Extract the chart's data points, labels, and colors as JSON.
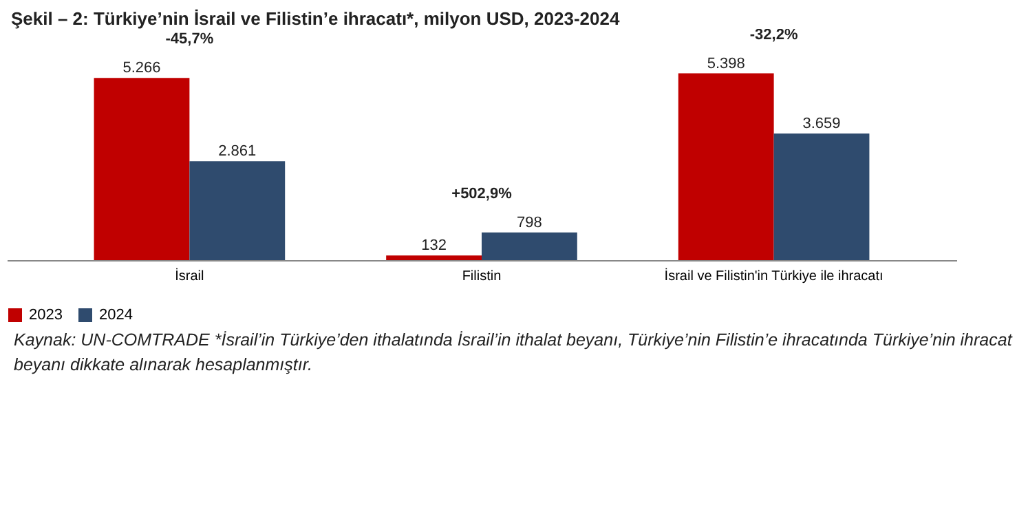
{
  "chart_data": {
    "type": "bar",
    "title": "Şekil – 2: Türkiye’nin İsrail ve Filistin’e ihracatı*, milyon USD, 2023-2024",
    "categories": [
      "İsrail",
      "Filistin",
      "İsrail ve Filistin'in Türkiye ile ihracatı"
    ],
    "series": [
      {
        "name": "2023",
        "color": "#c00000",
        "values": [
          5266,
          132,
          5398
        ],
        "value_labels": [
          "5.266",
          "132",
          "5.398"
        ]
      },
      {
        "name": "2024",
        "color": "#2f4b6e",
        "values": [
          2861,
          798,
          3659
        ],
        "value_labels": [
          "2.861",
          "798",
          "3.659"
        ]
      }
    ],
    "legend": "bottom",
    "annotations": [
      "-45,7%",
      "+502,9%",
      "-32,2%",
      "Kaynak: UN-COMTRADE *İsrail’in Türkiye’den ithalatında İsrail’in ithalat beyanı, Türkiye’nin Filistin’e ihracatında Türkiye’nin ihracat beyanı dikkate alınarak hesaplanmıştır."
    ]
  }
}
